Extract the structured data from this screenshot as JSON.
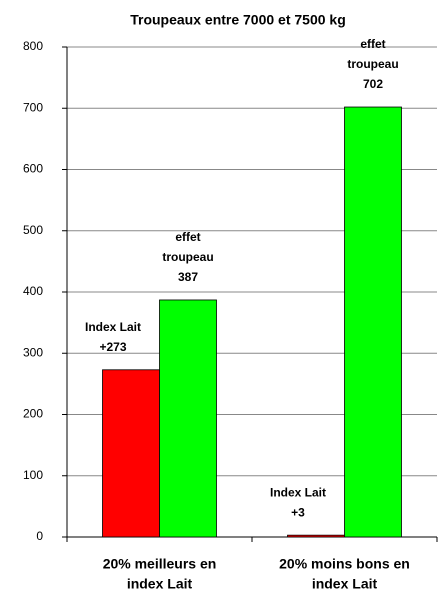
{
  "chart_data": {
    "type": "bar",
    "title": "Troupeaux entre 7000 et 7500 kg",
    "categories": [
      [
        "20% meilleurs en",
        "index Lait"
      ],
      [
        "20% moins bons en",
        "index Lait"
      ]
    ],
    "series": [
      {
        "color": "#ff0000",
        "values": [
          273,
          3
        ],
        "value_labels": [
          [
            "Index Lait",
            "+273"
          ],
          [
            "Index Lait",
            "+3"
          ]
        ]
      },
      {
        "color": "#00ff00",
        "values": [
          387,
          702
        ],
        "value_labels": [
          [
            "effet",
            "troupeau",
            "387"
          ],
          [
            "effet",
            "troupeau",
            "702"
          ]
        ]
      }
    ],
    "ylim": [
      0,
      800
    ],
    "yticks": [
      0,
      100,
      200,
      300,
      400,
      500,
      600,
      700,
      800
    ],
    "grid": true
  }
}
